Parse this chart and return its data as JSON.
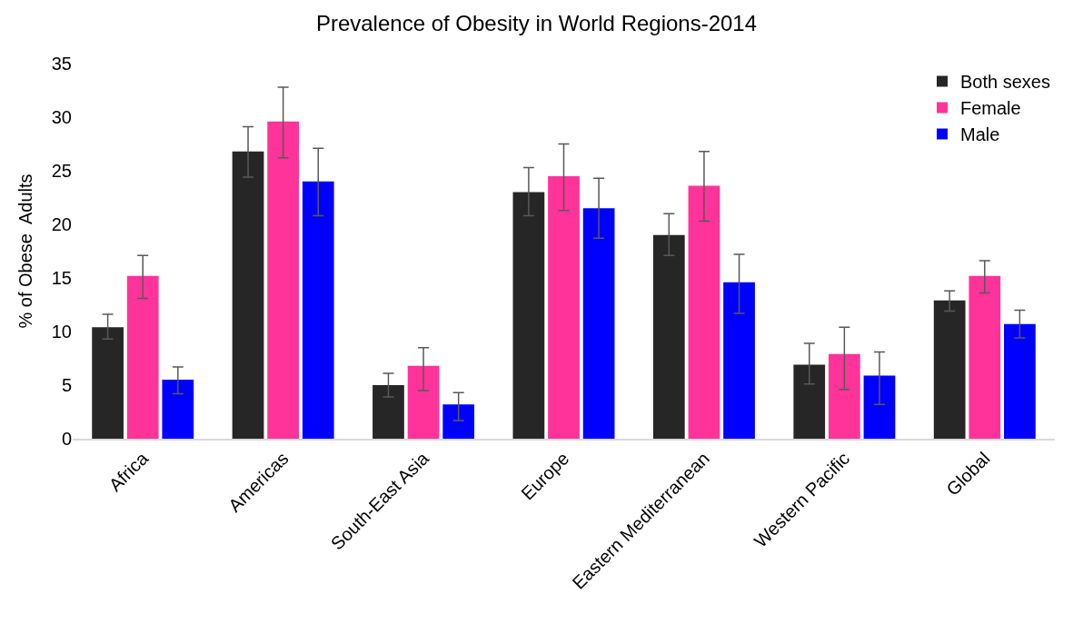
{
  "chart_data": {
    "type": "bar",
    "title": "Prevalence of Obesity in World Regions-2014",
    "ylabel": "% of Obese  Adults",
    "categories": [
      "Africa",
      "Americas",
      "South-East Asia",
      "Europe",
      "Eastern Mediterranean",
      "Western Pacific",
      "Global"
    ],
    "series": [
      {
        "name": "Both sexes",
        "color": "#262626",
        "values": [
          10.4,
          26.8,
          5.0,
          23.0,
          19.0,
          6.9,
          12.9
        ],
        "errors": [
          [
            9.3,
            11.6
          ],
          [
            24.4,
            29.1
          ],
          [
            3.9,
            6.1
          ],
          [
            20.8,
            25.3
          ],
          [
            17.1,
            21.0
          ],
          [
            5.1,
            8.9
          ],
          [
            11.9,
            13.8
          ]
        ]
      },
      {
        "name": "Female",
        "color": "#ff3399",
        "values": [
          15.2,
          29.6,
          6.8,
          24.5,
          23.6,
          7.9,
          15.2
        ],
        "errors": [
          [
            13.1,
            17.1
          ],
          [
            26.2,
            32.8
          ],
          [
            4.5,
            8.5
          ],
          [
            21.3,
            27.5
          ],
          [
            20.3,
            26.8
          ],
          [
            4.6,
            10.4
          ],
          [
            13.6,
            16.6
          ]
        ]
      },
      {
        "name": "Male",
        "color": "#0000ff",
        "values": [
          5.5,
          24.0,
          3.2,
          21.5,
          14.6,
          5.9,
          10.7
        ],
        "errors": [
          [
            4.2,
            6.7
          ],
          [
            20.8,
            27.1
          ],
          [
            1.7,
            4.3
          ],
          [
            18.7,
            24.3
          ],
          [
            11.7,
            17.2
          ],
          [
            3.2,
            8.1
          ],
          [
            9.4,
            12.0
          ]
        ]
      }
    ],
    "ylim": [
      0,
      35
    ],
    "yticks": [
      0,
      5,
      10,
      15,
      20,
      25,
      30,
      35
    ],
    "grid": false,
    "legend": "top right"
  }
}
